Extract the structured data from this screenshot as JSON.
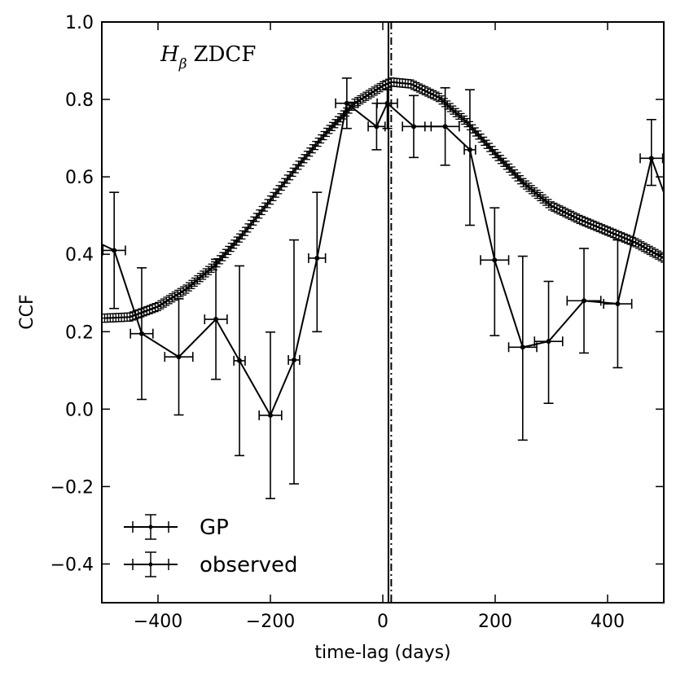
{
  "chart_data": {
    "type": "line",
    "annotation": {
      "symbol": "H",
      "subscript": "β",
      "text": "ZDCF"
    },
    "xlabel": "time-lag (days)",
    "ylabel": "CCF",
    "xlim": [
      -500,
      500
    ],
    "ylim": [
      -0.5,
      1.0
    ],
    "xticks": [
      -400,
      -200,
      0,
      200,
      400
    ],
    "xtick_labels": [
      "−400",
      "−200",
      "0",
      "200",
      "400"
    ],
    "yticks": [
      -0.4,
      -0.2,
      0.0,
      0.2,
      0.4,
      0.6,
      0.8,
      1.0
    ],
    "ytick_labels": [
      "−0.4",
      "−0.2",
      "0.0",
      "0.2",
      "0.4",
      "0.6",
      "0.8",
      "1.0"
    ],
    "grid": false,
    "legend_position": "lower-left",
    "vertical_lines": [
      {
        "x": 10,
        "style": "solid"
      },
      {
        "x": 15,
        "style": "dashdot"
      }
    ],
    "series": [
      {
        "name": "GP",
        "marker_style": "plus",
        "color": "#000000",
        "x": [
          -495,
          -450,
          -400,
          -350,
          -300,
          -250,
          -200,
          -150,
          -100,
          -50,
          0,
          15,
          50,
          100,
          150,
          200,
          250,
          300,
          350,
          400,
          450,
          500
        ],
        "y": [
          0.235,
          0.238,
          0.265,
          0.31,
          0.37,
          0.45,
          0.54,
          0.63,
          0.715,
          0.79,
          0.835,
          0.845,
          0.84,
          0.805,
          0.74,
          0.66,
          0.585,
          0.525,
          0.49,
          0.46,
          0.43,
          0.39
        ],
        "yerr": [
          0.01,
          0.01,
          0.01,
          0.01,
          0.01,
          0.01,
          0.01,
          0.01,
          0.01,
          0.01,
          0.01,
          0.01,
          0.01,
          0.01,
          0.01,
          0.01,
          0.01,
          0.01,
          0.01,
          0.01,
          0.01,
          0.01
        ]
      },
      {
        "name": "observed",
        "color": "#000000",
        "x": [
          -520,
          -478,
          -429,
          -363,
          -297,
          -255,
          -200,
          -158,
          -117,
          -64,
          -11,
          8,
          55,
          111,
          155,
          199,
          249,
          295,
          358,
          418,
          478,
          510
        ],
        "y": [
          0.44,
          0.41,
          0.195,
          0.135,
          0.232,
          0.125,
          -0.016,
          0.127,
          0.39,
          0.79,
          0.73,
          0.79,
          0.73,
          0.73,
          0.67,
          0.385,
          0.16,
          0.175,
          0.28,
          0.272,
          0.648,
          0.52
        ],
        "xerr": [
          0,
          20,
          20,
          25,
          20,
          10,
          20,
          10,
          15,
          20,
          15,
          18,
          20,
          25,
          10,
          25,
          25,
          25,
          30,
          25,
          20,
          0
        ],
        "yerr_lo": [
          0,
          0.15,
          0.17,
          0.15,
          0.155,
          0.245,
          0.215,
          0.32,
          0.19,
          0.065,
          0.06,
          0.065,
          0.08,
          0.1,
          0.195,
          0.195,
          0.24,
          0.16,
          0.135,
          0.165,
          0.07,
          0
        ],
        "yerr_hi": [
          0,
          0.15,
          0.17,
          0.15,
          0.155,
          0.245,
          0.215,
          0.31,
          0.17,
          0.065,
          0.06,
          0.035,
          0.08,
          0.1,
          0.155,
          0.135,
          0.235,
          0.155,
          0.135,
          0.165,
          0.1,
          0
        ]
      }
    ]
  }
}
